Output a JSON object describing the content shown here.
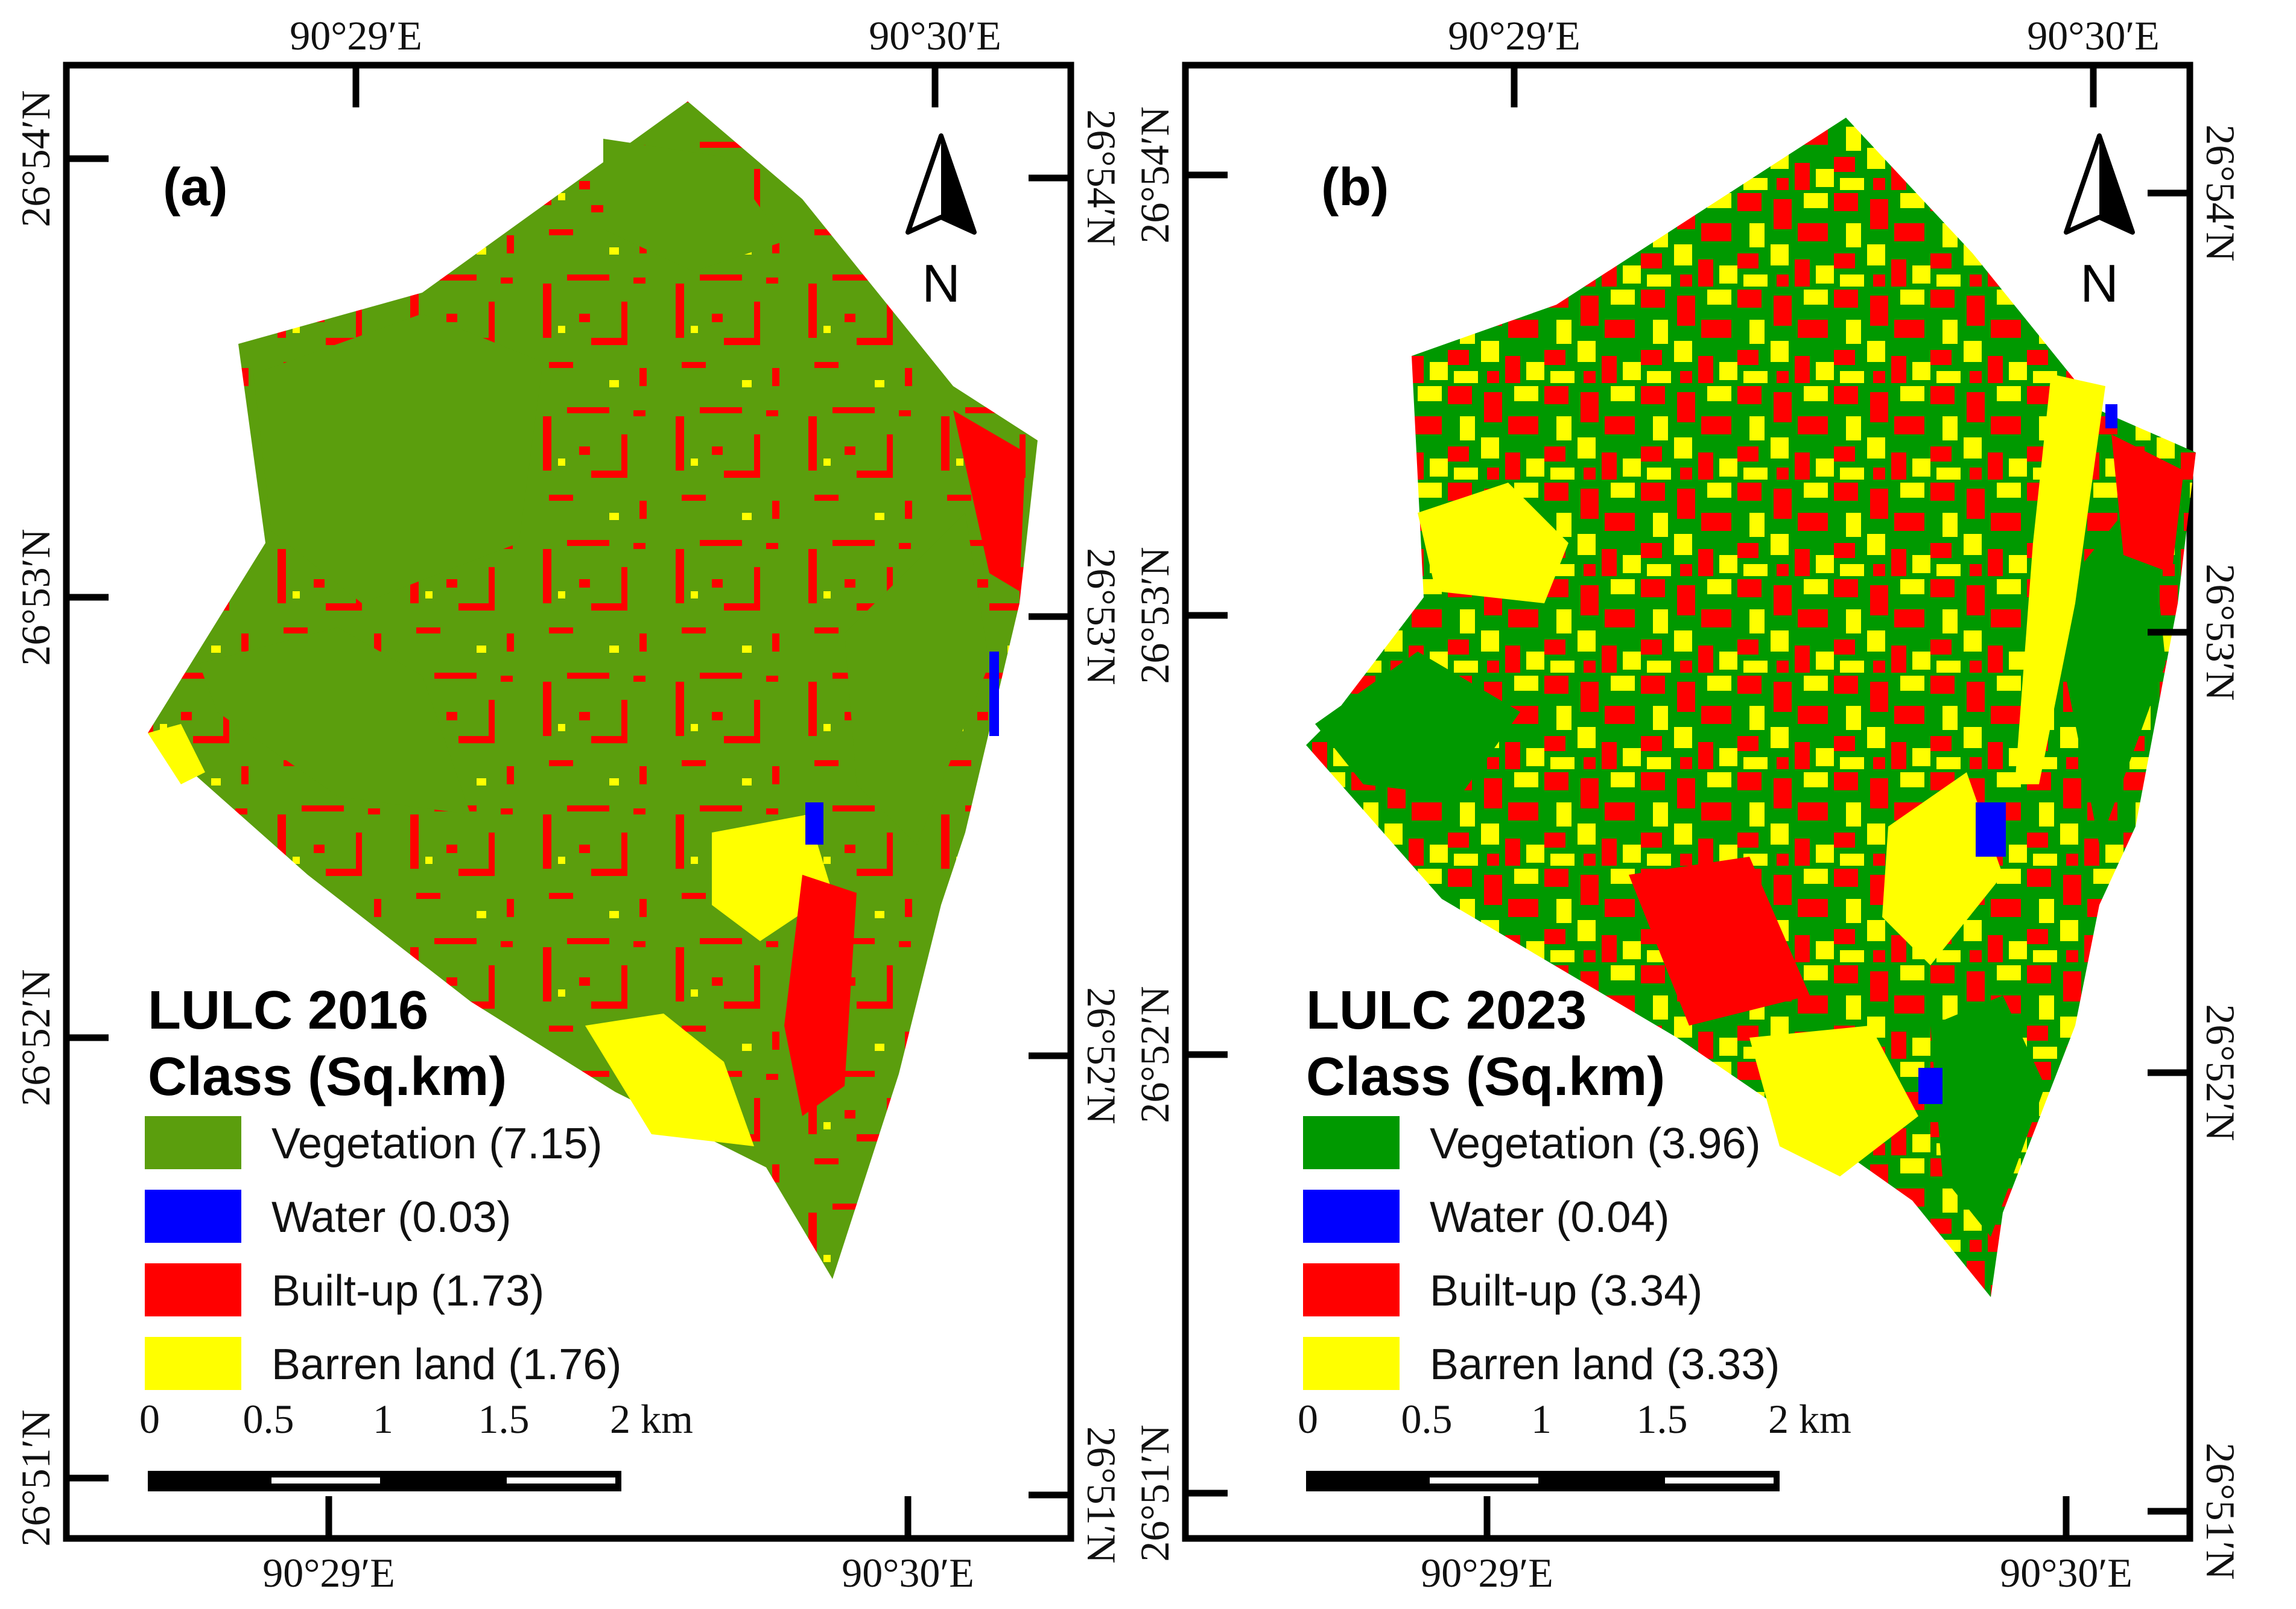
{
  "panels": [
    {
      "label": "(a)",
      "legend_title_1": "LULC 2016",
      "legend_title_2": "Class (Sq.km)",
      "classes": [
        {
          "name": "Vegetation",
          "value": "(7.15)",
          "area_sqkm": 7.15,
          "color": "#5b9e0d"
        },
        {
          "name": "Water",
          "value": "(0.03)",
          "area_sqkm": 0.03,
          "color": "#0000ff"
        },
        {
          "name": "Built-up",
          "value": "(1.73)",
          "area_sqkm": 1.73,
          "color": "#ff0000"
        },
        {
          "name": "Barren land",
          "value": "(1.76)",
          "area_sqkm": 1.76,
          "color": "#ffff00"
        }
      ]
    },
    {
      "label": "(b)",
      "legend_title_1": "LULC 2023",
      "legend_title_2": "Class (Sq.km)",
      "classes": [
        {
          "name": "Vegetation",
          "value": "(3.96)",
          "area_sqkm": 3.96,
          "color": "#009900"
        },
        {
          "name": "Water",
          "value": "(0.04)",
          "area_sqkm": 0.04,
          "color": "#0000ff"
        },
        {
          "name": "Built-up",
          "value": "(3.34)",
          "area_sqkm": 3.34,
          "color": "#ff0000"
        },
        {
          "name": "Barren land",
          "value": "(3.33)",
          "area_sqkm": 3.33,
          "color": "#ffff00"
        }
      ]
    }
  ],
  "coords": {
    "lon_1": "90°29′E",
    "lon_2": "90°30′E",
    "lat_54": "26°54′N",
    "lat_53": "26°53′N",
    "lat_52": "26°52′N",
    "lat_51": "26°51′N"
  },
  "north_label": "N",
  "scale": {
    "labels": [
      "0",
      "0.5",
      "1",
      "1.5",
      "2 km"
    ]
  },
  "icons": {
    "north_arrow": "north-arrow-icon"
  }
}
